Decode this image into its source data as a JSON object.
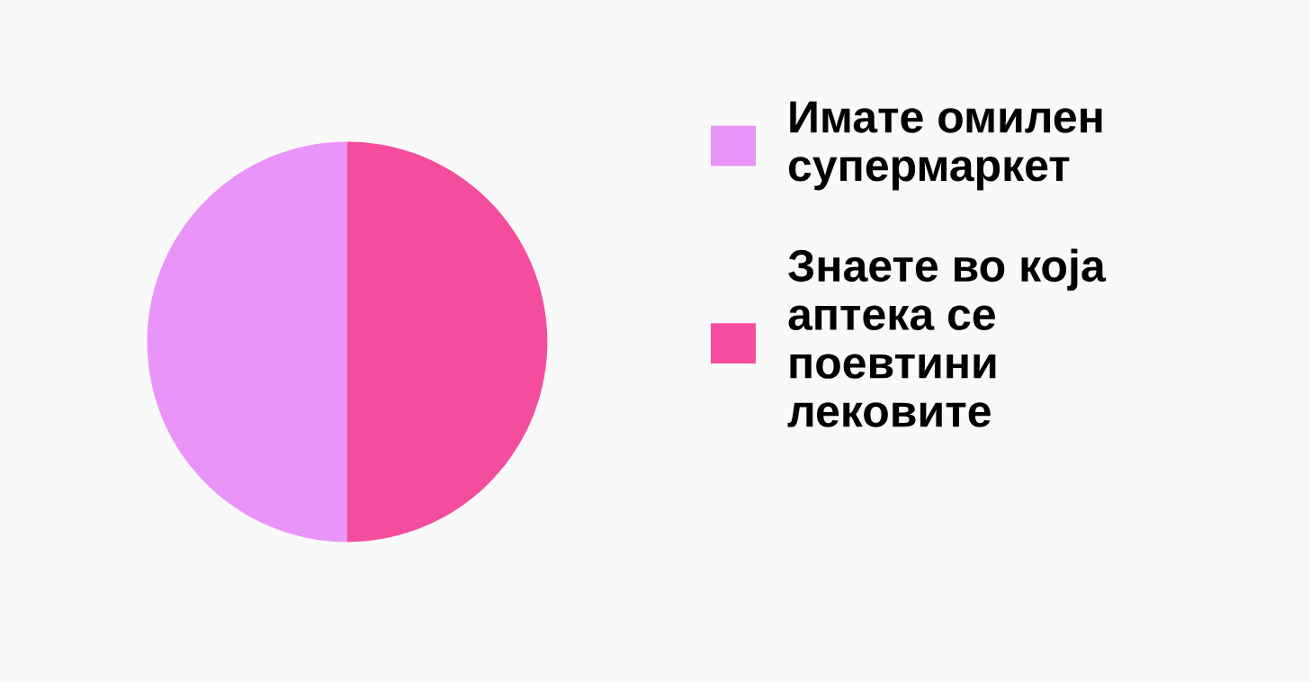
{
  "chart_data": {
    "type": "pie",
    "categories": [
      "Имате омилен\nсупермаркет",
      "Знаете во која\nаптека се\nпоевтини\nлековите"
    ],
    "values": [
      50,
      50
    ],
    "colors": [
      "#e994f8",
      "#f54d9e"
    ],
    "legend": "right"
  }
}
